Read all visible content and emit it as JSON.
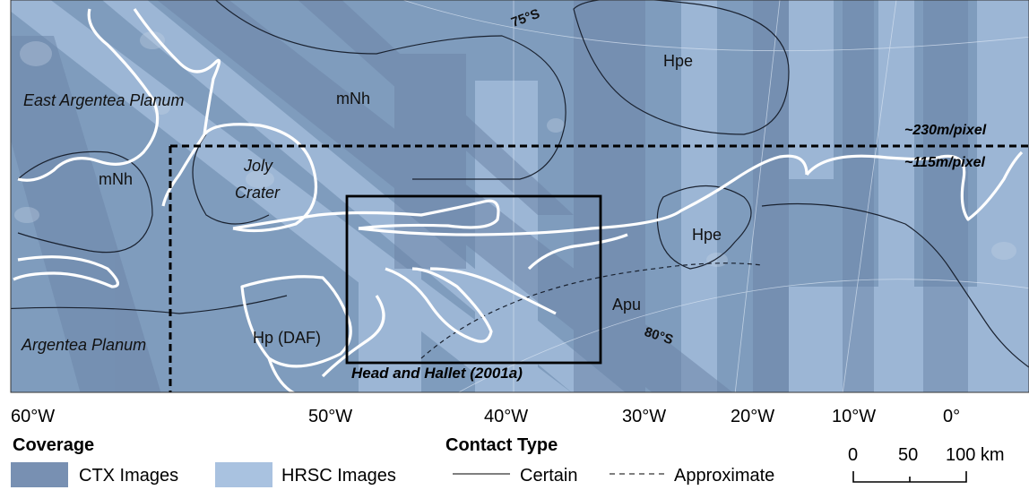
{
  "map": {
    "units": {
      "mNh_1": "mNh",
      "mNh_2": "mNh",
      "Hpe_1": "Hpe",
      "Hpe_2": "Hpe",
      "Apu": "Apu",
      "Hp_DAF": "Hp (DAF)"
    },
    "place_names": {
      "east_argentea": "East Argentea Planum",
      "argentea": "Argentea Planum",
      "joly_1": "Joly",
      "joly_2": "Crater"
    },
    "latitudes": {
      "lat75": "75°S",
      "lat80": "80°S"
    },
    "resolution_labels": {
      "high": "~230m/pixel",
      "low": "~115m/pixel"
    },
    "study_box_label": "Head and Hallet (2001a)",
    "colors": {
      "background": "#7f9cbd",
      "ctx": "#7890b2",
      "hrsc": "#a9c2e0",
      "contact_line": "#1a2230",
      "outline_white": "#ffffff",
      "box": "#000000"
    }
  },
  "axis": {
    "longitude_ticks": [
      "60°W",
      "50°W",
      "40°W",
      "30°W",
      "20°W",
      "10°W",
      "0°"
    ]
  },
  "legend": {
    "coverage_title": "Coverage",
    "ctx_label": "CTX Images",
    "hrsc_label": "HRSC Images",
    "contact_title": "Contact Type",
    "certain_label": "Certain",
    "approximate_label": "Approximate",
    "scale_labels": [
      "0",
      "50",
      "100 km"
    ]
  }
}
